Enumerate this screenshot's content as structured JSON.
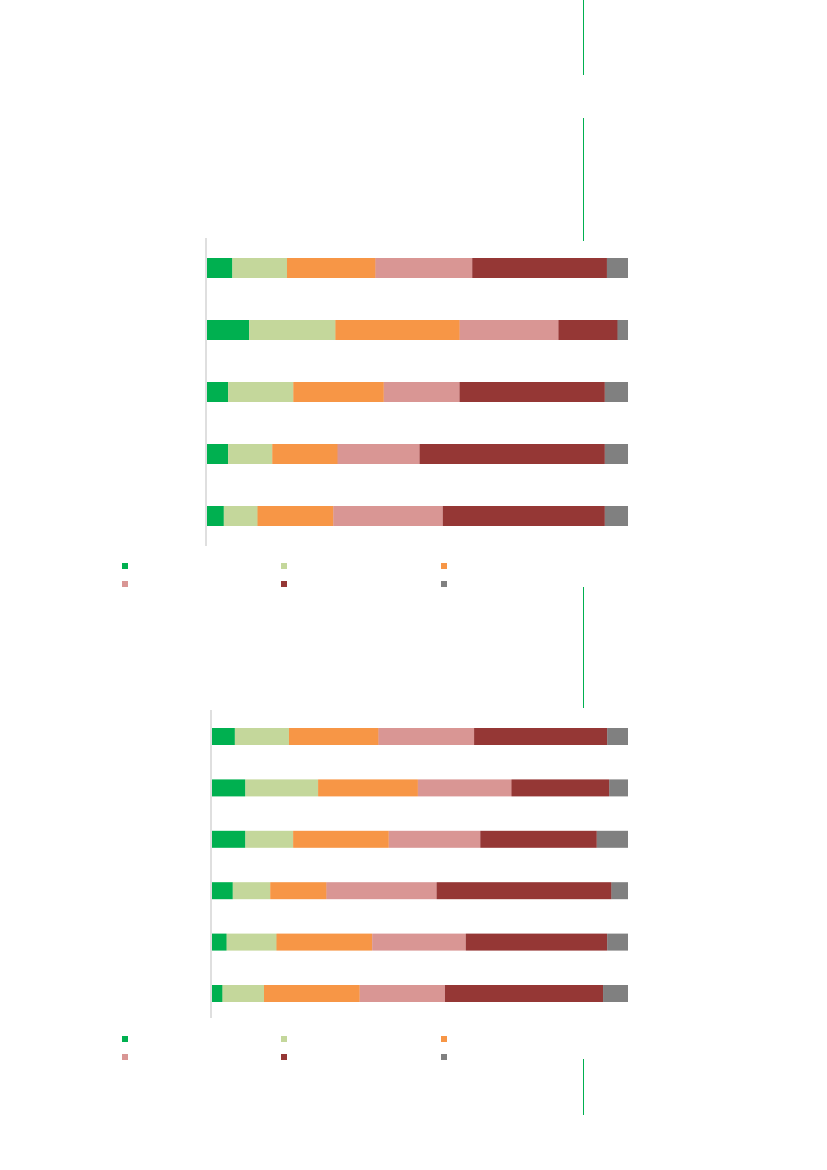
{
  "colors": {
    "accent_rule": "#00b050",
    "axis": "#bfbfbf",
    "series": [
      "#00b050",
      "#c4d79b",
      "#f79646",
      "#d99694",
      "#953735",
      "#808080"
    ]
  },
  "chart_data": [
    {
      "type": "bar",
      "orientation": "horizontal",
      "stacked": "100%",
      "categories": [
        "",
        "",
        "",
        "",
        ""
      ],
      "series": [
        {
          "values": [
            6,
            10,
            5,
            5,
            4
          ]
        },
        {
          "values": [
            13,
            20.5,
            15.5,
            10.5,
            8
          ]
        },
        {
          "values": [
            21,
            29.5,
            21.5,
            15.5,
            18
          ]
        },
        {
          "values": [
            23,
            23.5,
            18,
            19.5,
            26
          ]
        },
        {
          "values": [
            32,
            14,
            34.5,
            44,
            38.5
          ]
        },
        {
          "values": [
            5,
            2.5,
            5.5,
            5.5,
            5.5
          ]
        }
      ],
      "legend": "bottom",
      "grid": false
    },
    {
      "type": "bar",
      "orientation": "horizontal",
      "stacked": "100%",
      "categories": [
        "",
        "",
        "",
        "",
        "",
        ""
      ],
      "series": [
        {
          "values": [
            5.5,
            8,
            8,
            5,
            3.5,
            2.5
          ]
        },
        {
          "values": [
            13,
            17.5,
            11.5,
            9,
            12,
            10
          ]
        },
        {
          "values": [
            21.5,
            24,
            23,
            13.5,
            23,
            23
          ]
        },
        {
          "values": [
            23,
            22.5,
            22,
            26.5,
            22.5,
            20.5
          ]
        },
        {
          "values": [
            32,
            23.5,
            28,
            42,
            34,
            38
          ]
        },
        {
          "values": [
            5,
            4.5,
            7.5,
            4,
            5,
            6
          ]
        }
      ],
      "legend": "bottom",
      "grid": false
    }
  ]
}
